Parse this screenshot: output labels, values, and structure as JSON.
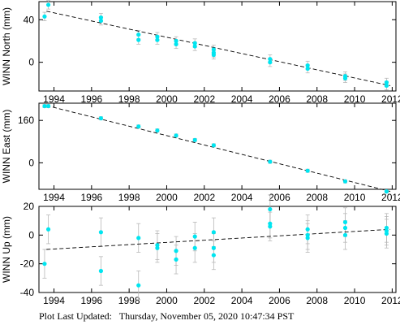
{
  "footer": {
    "label": "Plot Last Updated:",
    "timestamp": "Thursday, November 05, 2020 10:47:34 PST"
  },
  "colors": {
    "points": "#00e5f0",
    "error_bars": "#b8b8b8",
    "trend": "#000000"
  },
  "chart_data": [
    {
      "type": "scatter",
      "ylabel": "WINN North (mm)",
      "xlim": [
        1993.2,
        2012.2
      ],
      "ylim": [
        -27,
        57
      ],
      "xticks": [
        1994,
        1996,
        1998,
        2000,
        2002,
        2004,
        2006,
        2008,
        2010,
        2012
      ],
      "yticks": [
        0,
        40
      ],
      "points": [
        [
          1993.5,
          43
        ],
        [
          1993.7,
          54
        ],
        [
          1996.5,
          42
        ],
        [
          1996.5,
          39
        ],
        [
          1998.5,
          26
        ],
        [
          1998.5,
          21
        ],
        [
          1999.5,
          24
        ],
        [
          1999.5,
          21
        ],
        [
          2000.5,
          20
        ],
        [
          2000.5,
          17
        ],
        [
          2001.5,
          18
        ],
        [
          2001.5,
          15
        ],
        [
          2002.5,
          12
        ],
        [
          2002.5,
          9
        ],
        [
          2002.5,
          7
        ],
        [
          2005.5,
          3
        ],
        [
          2005.5,
          0
        ],
        [
          2007.5,
          -3
        ],
        [
          2007.5,
          -6
        ],
        [
          2009.5,
          -13
        ],
        [
          2009.5,
          -15
        ],
        [
          2011.7,
          -19
        ],
        [
          2011.7,
          -22
        ]
      ],
      "error": 4,
      "trend": [
        [
          1993.6,
          48
        ],
        [
          2011.9,
          -22
        ]
      ]
    },
    {
      "type": "scatter",
      "ylabel": "WINN East (mm)",
      "xlim": [
        1993.2,
        2012.2
      ],
      "ylim": [
        -100,
        225
      ],
      "xticks": [
        1994,
        1996,
        1998,
        2000,
        2002,
        2004,
        2006,
        2008,
        2010,
        2012
      ],
      "yticks": [
        0,
        160
      ],
      "points": [
        [
          1993.5,
          214
        ],
        [
          1993.7,
          214
        ],
        [
          1996.5,
          168
        ],
        [
          1998.5,
          137
        ],
        [
          1999.5,
          122
        ],
        [
          2000.5,
          103
        ],
        [
          2001.5,
          86
        ],
        [
          2002.5,
          66
        ],
        [
          2005.5,
          4
        ],
        [
          2007.5,
          -30
        ],
        [
          2009.5,
          -70
        ],
        [
          2011.7,
          -108
        ]
      ],
      "error": 6,
      "trend": [
        [
          1993.6,
          216
        ],
        [
          2011.9,
          -108
        ]
      ]
    },
    {
      "type": "scatter",
      "ylabel": "WINN Up (mm)",
      "xlim": [
        1993.2,
        2012.2
      ],
      "ylim": [
        -40,
        20
      ],
      "xticks": [
        1994,
        1996,
        1998,
        2000,
        2002,
        2004,
        2006,
        2008,
        2010,
        2012
      ],
      "yticks": [
        -40,
        -20,
        0,
        20
      ],
      "points": [
        [
          1993.5,
          -20
        ],
        [
          1993.7,
          4
        ],
        [
          1996.5,
          2
        ],
        [
          1996.5,
          -25
        ],
        [
          1998.5,
          -2
        ],
        [
          1998.5,
          -35
        ],
        [
          1999.5,
          -7
        ],
        [
          1999.5,
          -9
        ],
        [
          2000.5,
          -11
        ],
        [
          2000.5,
          -17
        ],
        [
          2001.5,
          -1
        ],
        [
          2001.5,
          -9
        ],
        [
          2002.5,
          2
        ],
        [
          2002.5,
          -9
        ],
        [
          2002.5,
          -14
        ],
        [
          2005.5,
          18
        ],
        [
          2005.5,
          8
        ],
        [
          2005.5,
          6
        ],
        [
          2007.5,
          4
        ],
        [
          2007.5,
          0
        ],
        [
          2007.5,
          -2
        ],
        [
          2009.5,
          9
        ],
        [
          2009.5,
          5
        ],
        [
          2009.5,
          0
        ],
        [
          2011.7,
          5
        ],
        [
          2011.7,
          3
        ],
        [
          2011.7,
          1
        ]
      ],
      "error": 10,
      "trend": [
        [
          1993.6,
          -10
        ],
        [
          2011.9,
          4
        ]
      ]
    }
  ]
}
